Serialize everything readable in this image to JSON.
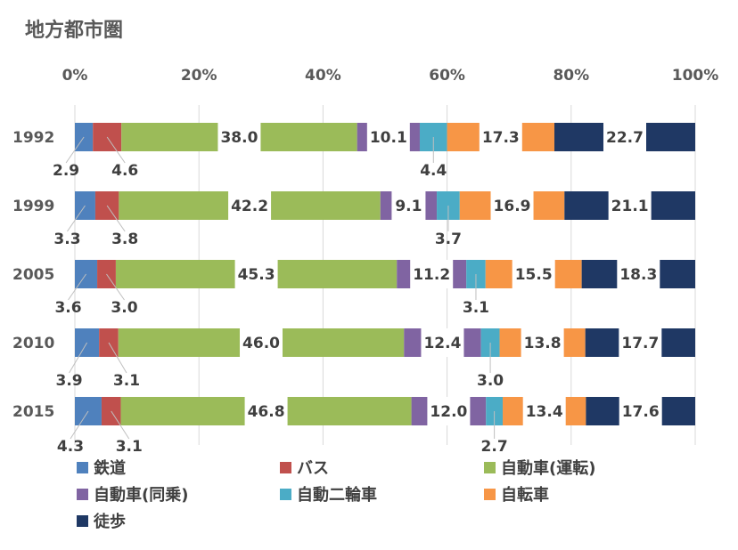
{
  "title": "地方都市圏",
  "chart_data": {
    "type": "bar",
    "orientation": "horizontal",
    "stacked": "percent",
    "title": "地方都市圏",
    "xlim": [
      0,
      100
    ],
    "x_ticks": [
      "0%",
      "20%",
      "40%",
      "60%",
      "80%",
      "100%"
    ],
    "categories": [
      "1992",
      "1999",
      "2005",
      "2010",
      "2015"
    ],
    "grid": true,
    "legend_position": "bottom",
    "series": [
      {
        "name": "鉄道",
        "color": "#4f81bd",
        "values": [
          2.9,
          3.3,
          3.6,
          3.9,
          4.3
        ]
      },
      {
        "name": "バス",
        "color": "#c0504d",
        "values": [
          4.6,
          3.8,
          3.0,
          3.1,
          3.1
        ]
      },
      {
        "name": "自動車(運転)",
        "color": "#9bbb59",
        "values": [
          38.0,
          42.2,
          45.3,
          46.0,
          46.8
        ]
      },
      {
        "name": "自動車(同乗)",
        "color": "#8064a2",
        "values": [
          10.1,
          9.1,
          11.2,
          12.4,
          12.0
        ]
      },
      {
        "name": "自動二輪車",
        "color": "#4bacc6",
        "values": [
          4.4,
          3.7,
          3.1,
          3.0,
          2.7
        ]
      },
      {
        "name": "自転車",
        "color": "#f79646",
        "values": [
          17.3,
          16.9,
          15.5,
          13.8,
          13.4
        ]
      },
      {
        "name": "徒歩",
        "color": "#1f3864",
        "values": [
          22.7,
          21.1,
          18.3,
          17.7,
          17.6
        ]
      }
    ]
  }
}
